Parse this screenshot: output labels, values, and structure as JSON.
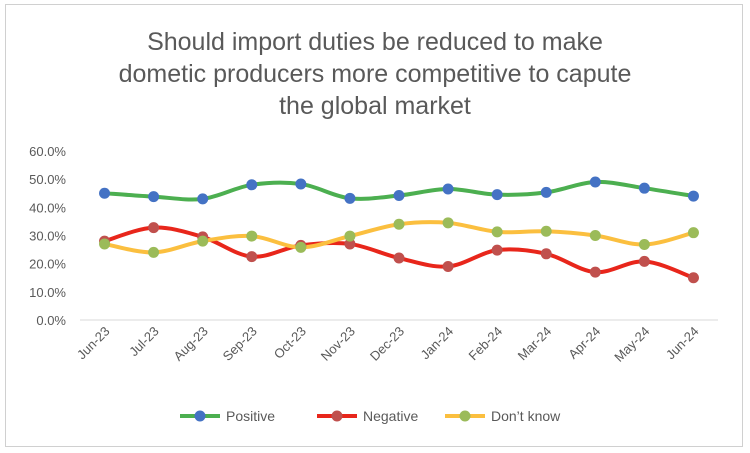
{
  "chart_data": {
    "type": "line",
    "title_lines": [
      "Should import duties be reduced to make",
      "dometic producers more competitive to capute",
      "the global market"
    ],
    "categories": [
      "Jun-23",
      "Jul-23",
      "Aug-23",
      "Sep-23",
      "Oct-23",
      "Nov-23",
      "Dec-23",
      "Jan-24",
      "Feb-24",
      "Mar-24",
      "Apr-24",
      "May-24",
      "Jun-24"
    ],
    "ylim": [
      0,
      60
    ],
    "yticks": [
      0,
      10,
      20,
      30,
      40,
      50,
      60
    ],
    "ytick_labels": [
      "0.0%",
      "10.0%",
      "20.0%",
      "30.0%",
      "40.0%",
      "50.0%",
      "60.0%"
    ],
    "grid": false,
    "legend_position": "bottom",
    "series": [
      {
        "name": "Positive",
        "line_color": "#4caf50",
        "marker_color": "#4472c4",
        "values": [
          45,
          43.8,
          43,
          48,
          48.3,
          43.2,
          44.2,
          46.5,
          44.5,
          45.3,
          49,
          46.8,
          44
        ]
      },
      {
        "name": "Negative",
        "line_color": "#e8261b",
        "marker_color": "#c0504d",
        "values": [
          28,
          32.8,
          29.5,
          22.5,
          26.5,
          27,
          22,
          19,
          24.8,
          23.5,
          17,
          20.8,
          15
        ]
      },
      {
        "name": "Don’t know",
        "line_color": "#fbbf3f",
        "marker_color": "#9bbb59",
        "values": [
          27,
          24,
          28,
          29.8,
          25.8,
          29.8,
          34,
          34.5,
          31.3,
          31.5,
          30,
          26.8,
          31
        ]
      }
    ]
  }
}
